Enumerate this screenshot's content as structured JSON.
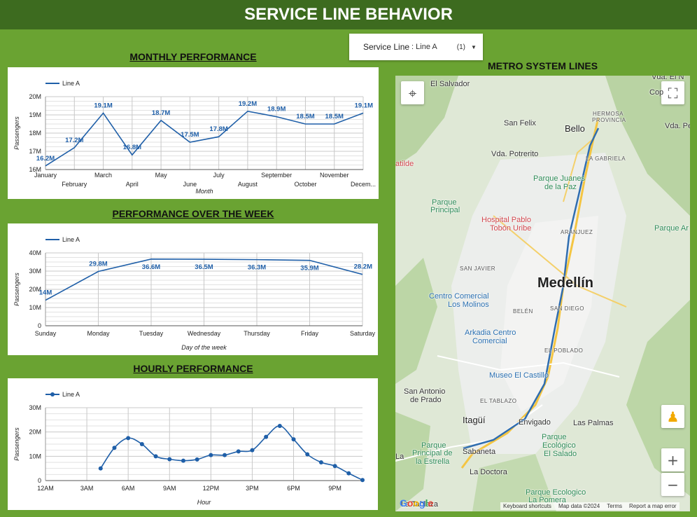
{
  "header": {
    "title": "SERVICE LINE BEHAVIOR"
  },
  "filter": {
    "label": "Service Line",
    "value": ": Line A",
    "count": "(1)"
  },
  "sections": {
    "monthly": "MONTHLY PERFORMANCE",
    "weekly": "PERFORMANCE OVER THE WEEK",
    "hourly": "HOURLY PERFORMANCE",
    "map": "METRO SYSTEM LINES"
  },
  "colors": {
    "line": "#1f5fa8",
    "grid": "#c8c8c8",
    "header_bg": "#3d6b1f",
    "page_bg": "#6aa332"
  },
  "chart_data": [
    {
      "id": "monthly",
      "type": "line",
      "legend": "Line A",
      "legend_position": "top-left",
      "grid": true,
      "xlabel": "Month",
      "ylabel": "Passengers",
      "categories": [
        "January",
        "February",
        "March",
        "April",
        "May",
        "June",
        "July",
        "August",
        "September",
        "October",
        "November",
        "Decem..."
      ],
      "values": [
        16.2,
        17.2,
        19.1,
        16.8,
        18.7,
        17.5,
        17.8,
        19.2,
        18.9,
        18.5,
        18.5,
        19.1
      ],
      "data_labels": [
        "16.2M",
        "17.2M",
        "19.1M",
        "16.8M",
        "18.7M",
        "17.5M",
        "17.8M",
        "19.2M",
        "18.9M",
        "18.5M",
        "18.5M",
        "19.1M"
      ],
      "ylim": [
        16,
        20
      ],
      "yticks": [
        16,
        17,
        18,
        19,
        20
      ],
      "ytick_labels": [
        "16M",
        "17M",
        "18M",
        "19M",
        "20M"
      ]
    },
    {
      "id": "weekly",
      "type": "line",
      "legend": "Line A",
      "legend_position": "top-left",
      "grid": true,
      "xlabel": "Day of the week",
      "ylabel": "Passengers",
      "categories": [
        "Sunday",
        "Monday",
        "Tuesday",
        "Wednesday",
        "Thursday",
        "Friday",
        "Saturday"
      ],
      "values": [
        14.0,
        29.8,
        36.6,
        36.5,
        36.3,
        35.9,
        28.2
      ],
      "data_labels": [
        "14M",
        "29.8M",
        "36.6M",
        "36.5M",
        "36.3M",
        "35.9M",
        "28.2M"
      ],
      "ylim": [
        0,
        40
      ],
      "yticks": [
        0,
        10,
        20,
        30,
        40
      ],
      "ytick_labels": [
        "0",
        "10M",
        "20M",
        "30M",
        "40M"
      ]
    },
    {
      "id": "hourly",
      "type": "line",
      "legend": "Line A",
      "legend_position": "top-left",
      "grid": true,
      "xlabel": "Hour",
      "ylabel": "Passengers",
      "x": [
        4,
        5,
        6,
        7,
        8,
        9,
        10,
        11,
        12,
        13,
        14,
        15,
        16,
        17,
        18,
        19,
        20,
        21,
        22,
        23
      ],
      "values": [
        5.0,
        13.5,
        17.5,
        15.0,
        10.0,
        8.8,
        8.2,
        8.7,
        10.5,
        10.5,
        12.0,
        12.5,
        18.0,
        22.5,
        17.0,
        10.8,
        7.5,
        6.0,
        3.0,
        0.2
      ],
      "xlim": [
        0,
        23
      ],
      "xticks": [
        0,
        3,
        6,
        9,
        12,
        15,
        18,
        21
      ],
      "xtick_labels": [
        "12AM",
        "3AM",
        "6AM",
        "9AM",
        "12PM",
        "3PM",
        "6PM",
        "9PM"
      ],
      "ylim": [
        0,
        30
      ],
      "yticks": [
        0,
        10,
        20,
        30
      ],
      "ytick_labels": [
        "0",
        "10M",
        "20M",
        "30M"
      ]
    }
  ],
  "map": {
    "labels": [
      {
        "name": "el-salvador",
        "text": "El Salvador",
        "style": ""
      },
      {
        "name": "san-felix",
        "text": "San Felix",
        "style": ""
      },
      {
        "name": "bello",
        "text": "Bello",
        "style": "mid"
      },
      {
        "name": "hermosa",
        "text": "HERMOSA",
        "style": "small"
      },
      {
        "name": "provincia",
        "text": "PROVINCIA",
        "style": "small"
      },
      {
        "name": "la-gabriela",
        "text": "LA GABRIELA",
        "style": "small"
      },
      {
        "name": "vda-potrerito",
        "text": "Vda. Potrerito",
        "style": ""
      },
      {
        "name": "matilde",
        "text": "atilde",
        "style": "red"
      },
      {
        "name": "parque-juanes",
        "text": "Parque Juanes",
        "style": "green"
      },
      {
        "name": "de-la-paz",
        "text": "de la Paz",
        "style": "green"
      },
      {
        "name": "parque-principal",
        "text": "Parque",
        "style": "green"
      },
      {
        "name": "parque-principal-2",
        "text": "Principal",
        "style": "green"
      },
      {
        "name": "hospital",
        "text": "Hospital Pablo",
        "style": "red"
      },
      {
        "name": "hospital-2",
        "text": "Tobón Uribe",
        "style": "red"
      },
      {
        "name": "aranjuez",
        "text": "ARANJUEZ",
        "style": "small"
      },
      {
        "name": "san-javier",
        "text": "SAN JAVIER",
        "style": "small"
      },
      {
        "name": "medellin",
        "text": "Medellín",
        "style": "big"
      },
      {
        "name": "centro-comercial",
        "text": "Centro Comercial",
        "style": "blue"
      },
      {
        "name": "los-molinos",
        "text": "Los Molinos",
        "style": "blue"
      },
      {
        "name": "belen",
        "text": "BELÉN",
        "style": "small"
      },
      {
        "name": "san-diego",
        "text": "SAN DIEGO",
        "style": "small"
      },
      {
        "name": "arkadia",
        "text": "Arkadia Centro",
        "style": "blue"
      },
      {
        "name": "arkadia-2",
        "text": "Comercial",
        "style": "blue"
      },
      {
        "name": "el-poblado",
        "text": "EL POBLADO",
        "style": "small"
      },
      {
        "name": "museo",
        "text": "Museo El Castillo",
        "style": "blue"
      },
      {
        "name": "san-antonio",
        "text": "San Antonio",
        "style": ""
      },
      {
        "name": "de-prado",
        "text": "de Prado",
        "style": ""
      },
      {
        "name": "el-tablazo",
        "text": "EL TABLAZO",
        "style": "small"
      },
      {
        "name": "itagui",
        "text": "Itagüí",
        "style": "mid"
      },
      {
        "name": "envigado",
        "text": "Envigado",
        "style": ""
      },
      {
        "name": "las-palmas",
        "text": "Las Palmas",
        "style": ""
      },
      {
        "name": "parque-estrella",
        "text": "Parque",
        "style": "green"
      },
      {
        "name": "parque-estrella-2",
        "text": "Principal de",
        "style": "green"
      },
      {
        "name": "parque-estrella-3",
        "text": "la Estrella",
        "style": "green"
      },
      {
        "name": "sabaneta",
        "text": "Sabaneta",
        "style": ""
      },
      {
        "name": "parque-ecologico",
        "text": "Parque",
        "style": "green"
      },
      {
        "name": "parque-ecologico-2",
        "text": "Ecológico",
        "style": "green"
      },
      {
        "name": "parque-ecologico-3",
        "text": "El Salado",
        "style": "green"
      },
      {
        "name": "la-doctora",
        "text": "La Doctora",
        "style": ""
      },
      {
        "name": "parque-pomera",
        "text": "Parque Ecologico",
        "style": "green"
      },
      {
        "name": "parque-pomera-2",
        "text": "La Pomera",
        "style": "green"
      },
      {
        "name": "vda-el",
        "text": "Vda. El N",
        "style": ""
      },
      {
        "name": "cop",
        "text": "Cop",
        "style": ""
      },
      {
        "name": "vda-pe",
        "text": "Vda. Pe",
        "style": ""
      },
      {
        "name": "parque-ar",
        "text": "Parque Ar",
        "style": "green"
      },
      {
        "name": "la-tablaza",
        "text": "La Tablaza",
        "style": ""
      },
      {
        "name": "la-left",
        "text": "La",
        "style": ""
      }
    ],
    "footer": [
      "Keyboard shortcuts",
      "Map data ©2024",
      "Terms",
      "Report a map error"
    ],
    "logo": "Google",
    "zoom_in": "+",
    "zoom_out": "−"
  }
}
